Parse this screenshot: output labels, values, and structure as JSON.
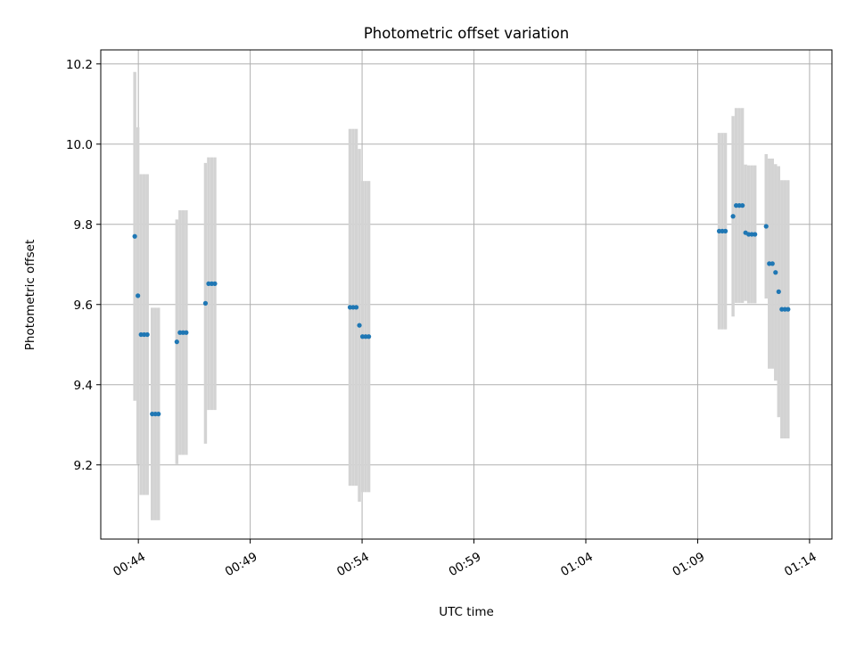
{
  "chart_data": {
    "type": "scatter",
    "title": "Photometric offset variation",
    "xlabel": "UTC time",
    "ylabel": "Photometric offset",
    "x_tick_labels": [
      "00:44",
      "00:49",
      "00:54",
      "00:59",
      "01:04",
      "01:09",
      "01:14"
    ],
    "x_tick_minutes": [
      0,
      5,
      10,
      15,
      20,
      25,
      30
    ],
    "y_ticks": [
      9.2,
      9.4,
      9.6,
      9.8,
      10.0,
      10.2
    ],
    "xlim": [
      -1.68,
      31.0
    ],
    "ylim": [
      9.015,
      10.235
    ],
    "grid": true,
    "point_color": "#1f77b4",
    "errorbar_color": "#d3d3d3",
    "points": [
      {
        "x": -0.16,
        "y": 9.77,
        "err": 0.41
      },
      {
        "x": -0.02,
        "y": 9.622,
        "err": 0.42
      },
      {
        "x": 0.12,
        "y": 9.525,
        "err": 0.4
      },
      {
        "x": 0.26,
        "y": 9.525,
        "err": 0.4
      },
      {
        "x": 0.4,
        "y": 9.525,
        "err": 0.4
      },
      {
        "x": 0.62,
        "y": 9.327,
        "err": 0.265
      },
      {
        "x": 0.76,
        "y": 9.327,
        "err": 0.265
      },
      {
        "x": 0.9,
        "y": 9.327,
        "err": 0.265
      },
      {
        "x": 1.72,
        "y": 9.507,
        "err": 0.305
      },
      {
        "x": 1.86,
        "y": 9.53,
        "err": 0.305
      },
      {
        "x": 2.0,
        "y": 9.53,
        "err": 0.305
      },
      {
        "x": 2.14,
        "y": 9.53,
        "err": 0.305
      },
      {
        "x": 3.0,
        "y": 9.603,
        "err": 0.35
      },
      {
        "x": 3.14,
        "y": 9.652,
        "err": 0.315
      },
      {
        "x": 3.28,
        "y": 9.652,
        "err": 0.315
      },
      {
        "x": 3.42,
        "y": 9.652,
        "err": 0.315
      },
      {
        "x": 9.46,
        "y": 9.593,
        "err": 0.445
      },
      {
        "x": 9.6,
        "y": 9.593,
        "err": 0.445
      },
      {
        "x": 9.74,
        "y": 9.593,
        "err": 0.445
      },
      {
        "x": 9.88,
        "y": 9.548,
        "err": 0.44
      },
      {
        "x": 10.02,
        "y": 9.52,
        "err": 0.388
      },
      {
        "x": 10.16,
        "y": 9.52,
        "err": 0.388
      },
      {
        "x": 10.3,
        "y": 9.52,
        "err": 0.388
      },
      {
        "x": 25.96,
        "y": 9.783,
        "err": 0.245
      },
      {
        "x": 26.1,
        "y": 9.783,
        "err": 0.245
      },
      {
        "x": 26.24,
        "y": 9.783,
        "err": 0.245
      },
      {
        "x": 26.58,
        "y": 9.82,
        "err": 0.25
      },
      {
        "x": 26.72,
        "y": 9.847,
        "err": 0.243
      },
      {
        "x": 26.86,
        "y": 9.847,
        "err": 0.243
      },
      {
        "x": 27.0,
        "y": 9.847,
        "err": 0.243
      },
      {
        "x": 27.14,
        "y": 9.779,
        "err": 0.17
      },
      {
        "x": 27.28,
        "y": 9.775,
        "err": 0.172
      },
      {
        "x": 27.42,
        "y": 9.775,
        "err": 0.172
      },
      {
        "x": 27.56,
        "y": 9.775,
        "err": 0.172
      },
      {
        "x": 28.06,
        "y": 9.795,
        "err": 0.18
      },
      {
        "x": 28.2,
        "y": 9.702,
        "err": 0.262
      },
      {
        "x": 28.34,
        "y": 9.702,
        "err": 0.262
      },
      {
        "x": 28.48,
        "y": 9.68,
        "err": 0.27
      },
      {
        "x": 28.62,
        "y": 9.632,
        "err": 0.313
      },
      {
        "x": 28.76,
        "y": 9.588,
        "err": 0.322
      },
      {
        "x": 28.9,
        "y": 9.588,
        "err": 0.322
      },
      {
        "x": 29.04,
        "y": 9.588,
        "err": 0.322
      }
    ]
  }
}
